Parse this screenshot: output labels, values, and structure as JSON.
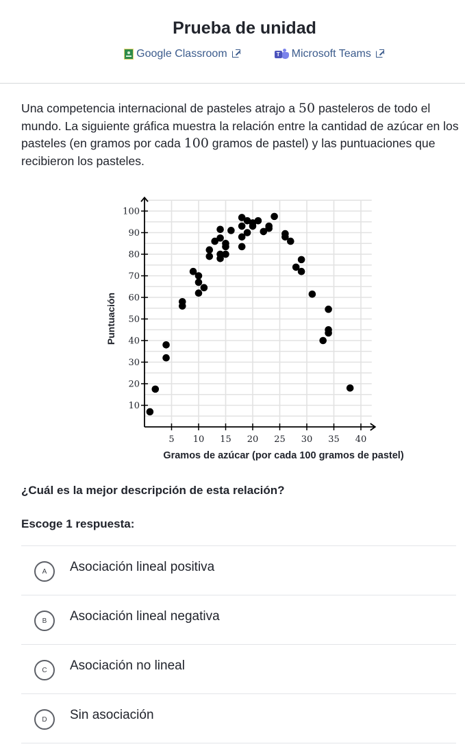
{
  "header": {
    "title": "Prueba de unidad",
    "links": [
      {
        "label": "Google Classroom",
        "icon": "google-classroom-icon",
        "external_icon": "external-link-icon"
      },
      {
        "label": "Microsoft Teams",
        "icon": "microsoft-teams-icon",
        "external_icon": "external-link-icon"
      }
    ]
  },
  "prompt": {
    "line_parts": [
      "Una competencia internacional de pasteles atrajo a ",
      "50",
      " pasteleros de todo el mundo. La siguiente gráfica muestra la relación entre la cantidad de azúcar en los pasteles (en gramos por cada ",
      "100",
      " gramos de pastel) y las puntuaciones que recibieron los pasteles."
    ]
  },
  "question": "¿Cuál es la mejor descripción de esta relación?",
  "choose_label": "Escoge 1 respuesta:",
  "options": [
    {
      "letter": "A",
      "label": "Asociación lineal positiva"
    },
    {
      "letter": "B",
      "label": "Asociación lineal negativa"
    },
    {
      "letter": "C",
      "label": "Asociación no lineal"
    },
    {
      "letter": "D",
      "label": "Sin asociación"
    }
  ],
  "chart_data": {
    "type": "scatter",
    "title": "",
    "xlabel": "Gramos de azúcar (por cada 100 gramos de pastel)",
    "ylabel": "Puntuación",
    "xlim": [
      0,
      42
    ],
    "ylim": [
      0,
      105
    ],
    "xticks": [
      5,
      10,
      15,
      20,
      25,
      30,
      35,
      40
    ],
    "yticks": [
      10,
      20,
      30,
      40,
      50,
      60,
      70,
      80,
      90,
      100
    ],
    "x_grid_step": 5,
    "y_grid_step": 5,
    "grid": true,
    "legend": null,
    "points": [
      [
        1,
        7
      ],
      [
        2,
        17.5
      ],
      [
        4,
        38
      ],
      [
        4,
        32
      ],
      [
        7,
        58
      ],
      [
        7,
        56
      ],
      [
        9,
        72
      ],
      [
        10,
        70
      ],
      [
        10,
        67
      ],
      [
        11,
        64.5
      ],
      [
        10,
        62
      ],
      [
        12,
        79
      ],
      [
        12,
        82
      ],
      [
        13,
        86
      ],
      [
        14,
        87.5
      ],
      [
        14,
        91.5
      ],
      [
        16,
        91
      ],
      [
        14,
        78
      ],
      [
        14,
        80
      ],
      [
        15,
        80
      ],
      [
        15,
        85
      ],
      [
        15,
        83.5
      ],
      [
        18,
        97
      ],
      [
        19,
        95.5
      ],
      [
        20,
        94.5
      ],
      [
        21,
        95.5
      ],
      [
        18,
        93
      ],
      [
        20,
        93
      ],
      [
        19,
        90
      ],
      [
        18,
        88
      ],
      [
        18,
        83.5
      ],
      [
        24,
        97.5
      ],
      [
        23,
        93
      ],
      [
        23,
        92
      ],
      [
        22,
        90.5
      ],
      [
        26,
        89.5
      ],
      [
        26,
        88
      ],
      [
        27,
        86
      ],
      [
        29,
        77.5
      ],
      [
        28,
        74
      ],
      [
        29,
        72
      ],
      [
        31,
        61.5
      ],
      [
        34,
        54.5
      ],
      [
        34,
        45
      ],
      [
        34,
        43.5
      ],
      [
        33,
        40
      ],
      [
        38,
        18
      ]
    ]
  }
}
